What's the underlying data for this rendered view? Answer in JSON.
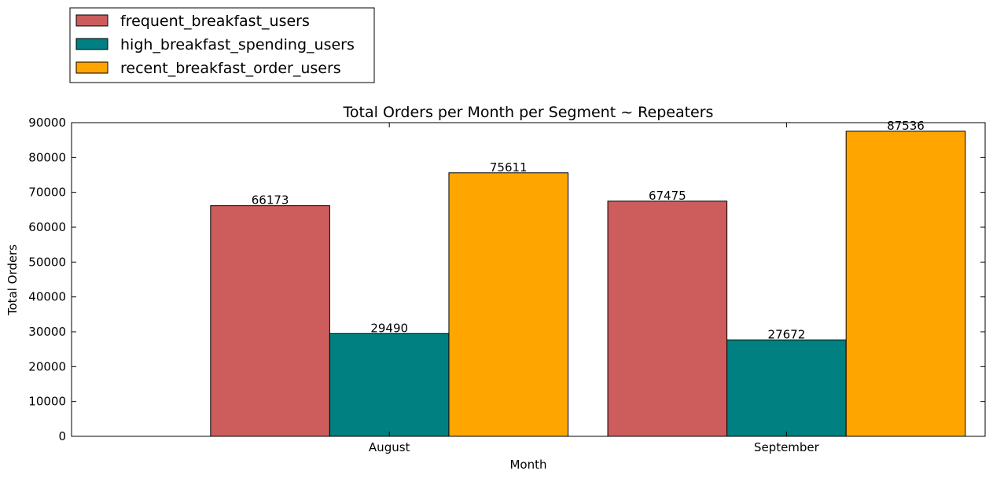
{
  "chart_data": {
    "type": "bar",
    "title": "Total Orders per Month per Segment ~ Repeaters",
    "xlabel": "Month",
    "ylabel": "Total Orders",
    "categories": [
      "August",
      "September"
    ],
    "series": [
      {
        "name": "frequent_breakfast_users",
        "color": "#cd5c5c",
        "values": [
          66173,
          67475
        ]
      },
      {
        "name": "high_breakfast_spending_users",
        "color": "#008080",
        "values": [
          29490,
          27672
        ]
      },
      {
        "name": "recent_breakfast_order_users",
        "color": "#ffa500",
        "values": [
          75611,
          87536
        ]
      }
    ],
    "ylim": [
      0,
      90000
    ],
    "yticks": [
      0,
      10000,
      20000,
      30000,
      40000,
      50000,
      60000,
      70000,
      80000,
      90000
    ],
    "grid": false,
    "legend_position": "top-left, above plot"
  }
}
